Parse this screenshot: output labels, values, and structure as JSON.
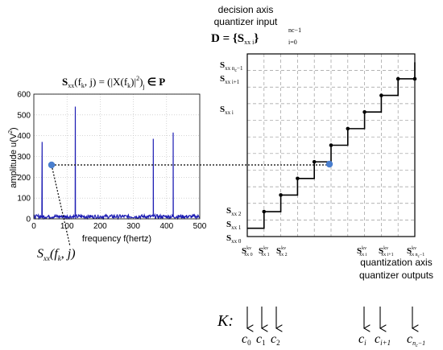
{
  "top_labels": {
    "line1": "decision axis",
    "line2": "quantizer input",
    "D_def": {
      "lhs": "D = {S",
      "sub": "xx i",
      "close": "}",
      "sup": "nc−1",
      "idx": "i=0"
    }
  },
  "spectrum_formula": {
    "S": "S",
    "S_sub": "xx",
    "args": "(f",
    "args_sub": "k",
    "args_rest": ", j) = (|X(f",
    "X_sub": "k",
    "X_rest": ")|",
    "sq": "2",
    "close": ")",
    "j": "j",
    "in": "∈ P"
  },
  "spectrum_plot": {
    "xlabel": "frequency f(hertz)",
    "ylabel_main": "amplitude u(V",
    "ylabel_sup": "2",
    "ylabel_end": ")",
    "xticks": [
      "0",
      "100",
      "200",
      "300",
      "400",
      "500"
    ],
    "yticks": [
      "0",
      "100",
      "200",
      "300",
      "400",
      "500",
      "600"
    ]
  },
  "point_label": {
    "S": "S",
    "sub": "xx",
    "rest": "(f",
    "k": "k",
    "end": ", j)"
  },
  "decision_labels": [
    {
      "main": "S",
      "sub": "xx n",
      "subsub": "c",
      "tail": "−1"
    },
    {
      "main": "S",
      "sub": "xx i+1"
    },
    {
      "main": "S",
      "sub": "xx i"
    },
    {
      "main": "S",
      "sub": "xx 2"
    },
    {
      "main": "S",
      "sub": "xx 1"
    },
    {
      "main": "S",
      "sub": "xx 0"
    }
  ],
  "output_labels": [
    {
      "main": "S",
      "sup": "kv",
      "sub": "xx 0"
    },
    {
      "main": "S",
      "sup": "kv",
      "sub": "xx 1"
    },
    {
      "main": "S",
      "sup": "kv",
      "sub": "xx 2"
    },
    {
      "main": "S",
      "sup": "kv",
      "sub": "xx i"
    },
    {
      "main": "S",
      "sup": "kv",
      "sub": "xx i+1"
    },
    {
      "main": "S",
      "sup": "kv",
      "sub": "xx n",
      "subsub": "c",
      "tail": "−1"
    }
  ],
  "bottom_labels": {
    "line1": "quantization axis",
    "line2": "quantizer outputs"
  },
  "codebook": {
    "K": "K:",
    "codes": [
      {
        "c": "c",
        "sub": "0"
      },
      {
        "c": "c",
        "sub": "1"
      },
      {
        "c": "c",
        "sub": "2"
      },
      {
        "c": "c",
        "sub": "i"
      },
      {
        "c": "c",
        "sub": "i+1"
      },
      {
        "c": "c",
        "sub": "n",
        "subsub": "c",
        "tail": "−1"
      }
    ]
  },
  "colors": {
    "spectrum": "#1f1fb4",
    "marker": "#4a7fcf",
    "grid": "#9a9a9a"
  },
  "chart_data": {
    "type": "line",
    "xlabel": "frequency f(hertz)",
    "ylabel": "amplitude u(V2)",
    "xlim": [
      0,
      500
    ],
    "ylim": [
      0,
      600
    ],
    "grid": true,
    "series": [
      {
        "values_note": "",
        "peaks": [
          {
            "x": 25,
            "y": 370
          },
          {
            "x": 125,
            "y": 540
          },
          {
            "x": 360,
            "y": 385
          },
          {
            "x": 420,
            "y": 415
          }
        ],
        "noise_level": 20
      }
    ],
    "highlight_point": {
      "x": 50,
      "y": 265
    }
  }
}
